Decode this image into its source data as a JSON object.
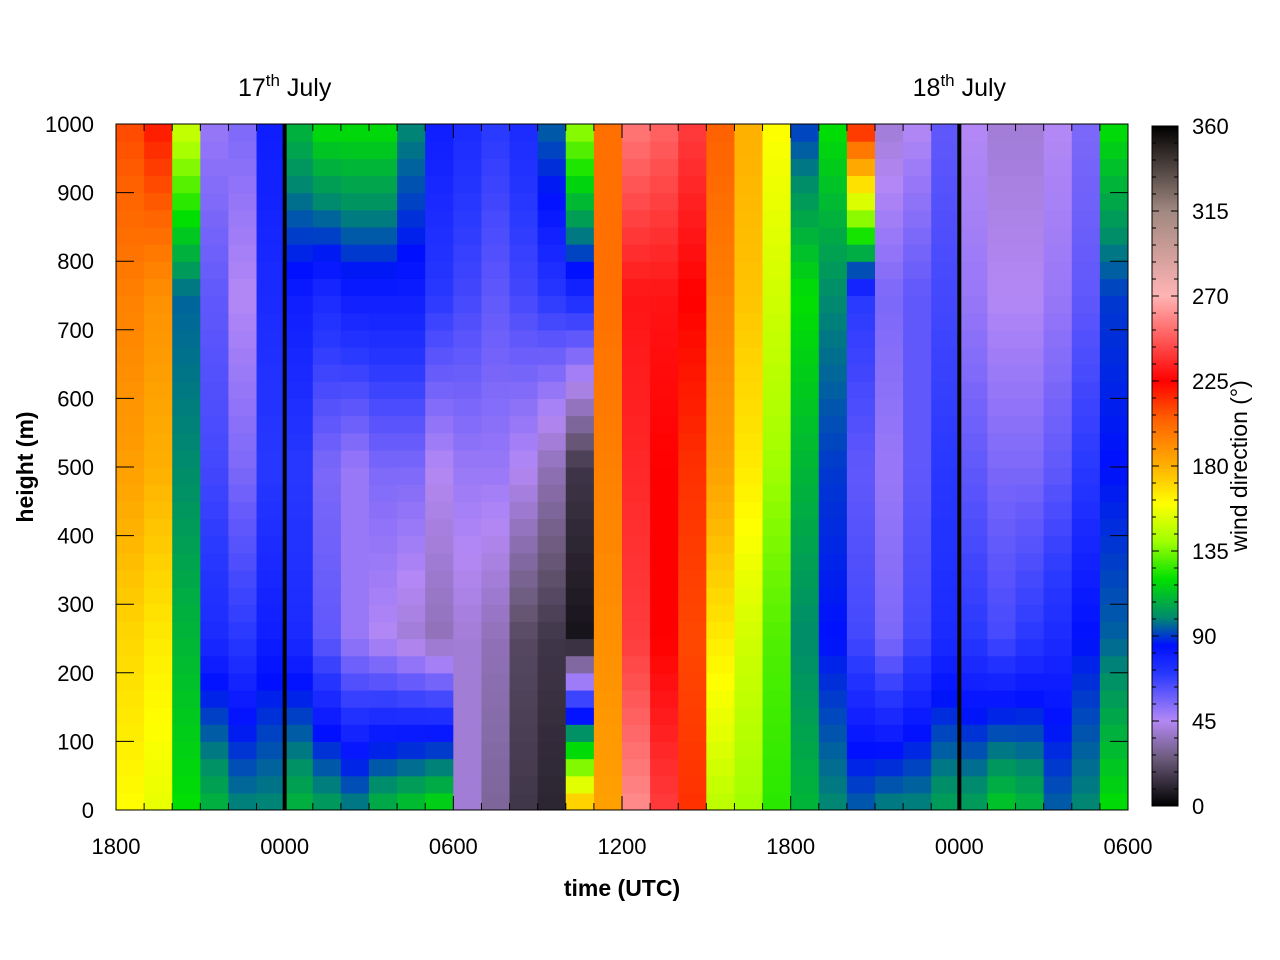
{
  "chart_data": {
    "type": "heatmap",
    "xlabel": "time (UTC)",
    "ylabel": "height (m)",
    "x_ticks": [
      "1800",
      "0000",
      "0600",
      "1200",
      "1800",
      "0000",
      "0600"
    ],
    "x_range_hours": [
      0,
      36
    ],
    "y_ticks": [
      0,
      100,
      200,
      300,
      400,
      500,
      600,
      700,
      800,
      900,
      1000
    ],
    "ylim": [
      0,
      1000
    ],
    "colorbar": {
      "label": "wind direction (°)",
      "ticks": [
        0,
        45,
        90,
        135,
        180,
        225,
        270,
        315,
        360
      ],
      "range": [
        0,
        360
      ]
    },
    "date_markers": [
      {
        "day": "17",
        "suffix": "th",
        "month": "July",
        "hour": 6
      },
      {
        "day": "18",
        "suffix": "th",
        "month": "July",
        "hour": 30
      }
    ],
    "time_columns_hours": [
      0.5,
      1.5,
      2.5,
      3.5,
      4.5,
      5.5,
      6.5,
      7.5,
      8.5,
      9.5,
      10.5,
      11.5,
      12.5,
      13.5,
      14.5,
      15.5,
      16.5,
      17.5,
      18.5,
      19.5,
      20.5,
      21.5,
      22.5,
      23.5,
      24.5,
      25.5,
      26.5,
      27.5,
      28.5,
      29.5,
      30.5,
      31.5,
      32.5,
      33.5,
      34.5,
      35.5
    ],
    "wind_direction_profiles": [
      {
        "t": 0.5,
        "h": [
          0,
          250,
          500,
          750,
          1000
        ],
        "dir": [
          160,
          170,
          185,
          195,
          210
        ]
      },
      {
        "t": 1.5,
        "h": [
          0,
          250,
          500,
          750,
          1000
        ],
        "dir": [
          155,
          165,
          180,
          190,
          220
        ]
      },
      {
        "t": 2.5,
        "h": [
          0,
          250,
          500,
          750,
          1000
        ],
        "dir": [
          120,
          110,
          100,
          95,
          150
        ]
      },
      {
        "t": 3.5,
        "h": [
          0,
          250,
          500,
          750,
          1000
        ],
        "dir": [
          110,
          75,
          65,
          60,
          50
        ]
      },
      {
        "t": 4.5,
        "h": [
          0,
          250,
          500,
          750,
          1000
        ],
        "dir": [
          100,
          70,
          55,
          45,
          55
        ]
      },
      {
        "t": 5.5,
        "h": [
          0,
          250,
          500,
          750,
          1000
        ],
        "dir": [
          100,
          80,
          70,
          75,
          80
        ]
      },
      {
        "t": 6.5,
        "h": [
          0,
          250,
          500,
          750,
          1000
        ],
        "dir": [
          110,
          75,
          70,
          80,
          110
        ]
      },
      {
        "t": 7.5,
        "h": [
          0,
          250,
          500,
          750,
          1000
        ],
        "dir": [
          105,
          60,
          55,
          75,
          120
        ]
      },
      {
        "t": 8.5,
        "h": [
          0,
          250,
          500,
          750,
          1000
        ],
        "dir": [
          100,
          50,
          50,
          80,
          120
        ]
      },
      {
        "t": 9.5,
        "h": [
          0,
          250,
          500,
          750,
          1000
        ],
        "dir": [
          110,
          45,
          55,
          80,
          120
        ]
      },
      {
        "t": 10.5,
        "h": [
          0,
          250,
          500,
          750,
          1000
        ],
        "dir": [
          115,
          40,
          55,
          80,
          100
        ]
      },
      {
        "t": 11.5,
        "h": [
          0,
          250,
          500,
          750,
          1000
        ],
        "dir": [
          120,
          35,
          45,
          70,
          80
        ]
      },
      {
        "t": 12.5,
        "h": [
          0,
          250,
          500,
          750,
          1000
        ],
        "dir": [
          40,
          40,
          50,
          65,
          75
        ]
      },
      {
        "t": 13.5,
        "h": [
          0,
          250,
          500,
          750,
          1000
        ],
        "dir": [
          30,
          35,
          50,
          60,
          70
        ]
      },
      {
        "t": 14.5,
        "h": [
          0,
          250,
          500,
          750,
          1000
        ],
        "dir": [
          15,
          20,
          45,
          65,
          75
        ]
      },
      {
        "t": 15.5,
        "h": [
          0,
          250,
          500,
          750,
          1000
        ],
        "dir": [
          10,
          15,
          35,
          70,
          95
        ]
      },
      {
        "t": 16.5,
        "h": [
          0,
          250,
          500,
          750,
          1000
        ],
        "dir": [
          180,
          5,
          15,
          75,
          140
        ]
      },
      {
        "t": 17.5,
        "h": [
          0,
          250,
          500,
          750,
          1000
        ],
        "dir": [
          185,
          190,
          195,
          200,
          200
        ]
      },
      {
        "t": 18.5,
        "h": [
          0,
          250,
          500,
          750,
          1000
        ],
        "dir": [
          260,
          240,
          235,
          230,
          255
        ]
      },
      {
        "t": 19.5,
        "h": [
          0,
          250,
          500,
          750,
          1000
        ],
        "dir": [
          240,
          225,
          225,
          230,
          250
        ]
      },
      {
        "t": 20.5,
        "h": [
          0,
          250,
          500,
          750,
          1000
        ],
        "dir": [
          215,
          210,
          215,
          225,
          240
        ]
      },
      {
        "t": 21.5,
        "h": [
          0,
          250,
          500,
          750,
          1000
        ],
        "dir": [
          145,
          165,
          185,
          195,
          205
        ]
      },
      {
        "t": 22.5,
        "h": [
          0,
          250,
          500,
          750,
          1000
        ],
        "dir": [
          140,
          150,
          165,
          175,
          180
        ]
      },
      {
        "t": 23.5,
        "h": [
          0,
          250,
          500,
          750,
          1000
        ],
        "dir": [
          125,
          130,
          140,
          150,
          160
        ]
      },
      {
        "t": 24.5,
        "h": [
          0,
          250,
          500,
          750,
          1000
        ],
        "dir": [
          110,
          100,
          110,
          120,
          90
        ]
      },
      {
        "t": 25.5,
        "h": [
          0,
          250,
          500,
          750,
          1000
        ],
        "dir": [
          100,
          85,
          90,
          100,
          120
        ]
      },
      {
        "t": 26.5,
        "h": [
          0,
          250,
          500,
          750,
          1000
        ],
        "dir": [
          95,
          65,
          60,
          70,
          220
        ]
      },
      {
        "t": 27.5,
        "h": [
          0,
          250,
          500,
          750,
          1000
        ],
        "dir": [
          100,
          55,
          50,
          55,
          40
        ]
      },
      {
        "t": 28.5,
        "h": [
          0,
          250,
          500,
          750,
          1000
        ],
        "dir": [
          100,
          65,
          60,
          60,
          45
        ]
      },
      {
        "t": 29.5,
        "h": [
          0,
          250,
          500,
          750,
          1000
        ],
        "dir": [
          105,
          75,
          70,
          65,
          60
        ]
      },
      {
        "t": 30.5,
        "h": [
          0,
          250,
          500,
          750,
          1000
        ],
        "dir": [
          105,
          70,
          60,
          50,
          45
        ]
      },
      {
        "t": 31.5,
        "h": [
          0,
          250,
          500,
          750,
          1000
        ],
        "dir": [
          115,
          65,
          55,
          45,
          40
        ]
      },
      {
        "t": 32.5,
        "h": [
          0,
          250,
          500,
          750,
          1000
        ],
        "dir": [
          110,
          70,
          55,
          45,
          40
        ]
      },
      {
        "t": 33.5,
        "h": [
          0,
          250,
          500,
          750,
          1000
        ],
        "dir": [
          95,
          75,
          60,
          50,
          45
        ]
      },
      {
        "t": 34.5,
        "h": [
          0,
          250,
          500,
          750,
          1000
        ],
        "dir": [
          100,
          85,
          70,
          60,
          55
        ]
      },
      {
        "t": 35.5,
        "h": [
          0,
          250,
          500,
          750,
          1000
        ],
        "dir": [
          120,
          95,
          85,
          90,
          120
        ]
      }
    ]
  }
}
